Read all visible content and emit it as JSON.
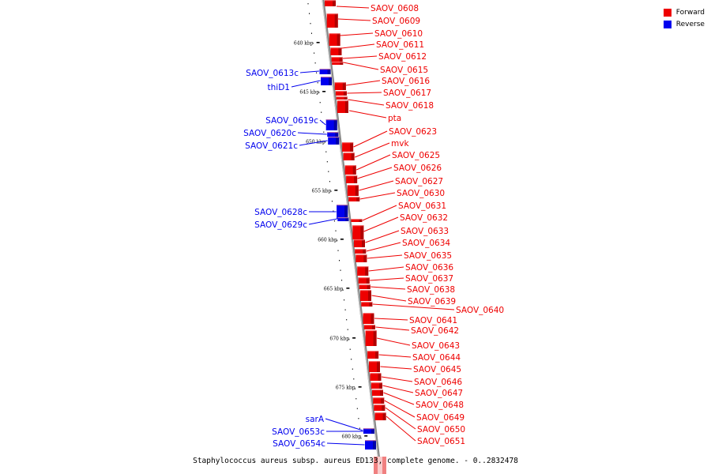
{
  "legend": {
    "forward": {
      "label": "Forward",
      "color": "#ee0000"
    },
    "reverse": {
      "label": "Reverse",
      "color": "#0000ee"
    }
  },
  "caption": "Staphylococcus aureus subsp. aureus ED133, complete genome. - 0..2832478",
  "ticks": [
    "640 kbp",
    "645 kbp",
    "650 kbp",
    "655 kbp",
    "660 kbp",
    "665 kbp",
    "670 kbp",
    "675 kbp",
    "680 kbp"
  ],
  "forward_genes": [
    "SAOV_0608",
    "SAOV_0609",
    "SAOV_0610",
    "SAOV_0611",
    "SAOV_0612",
    "SAOV_0615",
    "SAOV_0616",
    "SAOV_0617",
    "SAOV_0618",
    "pta",
    "SAOV_0623",
    "mvk",
    "SAOV_0625",
    "SAOV_0626",
    "SAOV_0627",
    "SAOV_0630",
    "SAOV_0631",
    "SAOV_0632",
    "SAOV_0633",
    "SAOV_0634",
    "SAOV_0635",
    "SAOV_0636",
    "SAOV_0637",
    "SAOV_0638",
    "SAOV_0639",
    "SAOV_0640",
    "SAOV_0641",
    "SAOV_0642",
    "SAOV_0643",
    "SAOV_0644",
    "SAOV_0645",
    "SAOV_0646",
    "SAOV_0647",
    "SAOV_0648",
    "SAOV_0649",
    "SAOV_0650",
    "SAOV_0651"
  ],
  "reverse_genes": [
    "SAOV_0613c",
    "thiD1",
    "SAOV_0619c",
    "SAOV_0620c",
    "SAOV_0621c",
    "SAOV_0628c",
    "SAOV_0629c",
    "sarA",
    "SAOV_0653c",
    "SAOV_0654c"
  ]
}
